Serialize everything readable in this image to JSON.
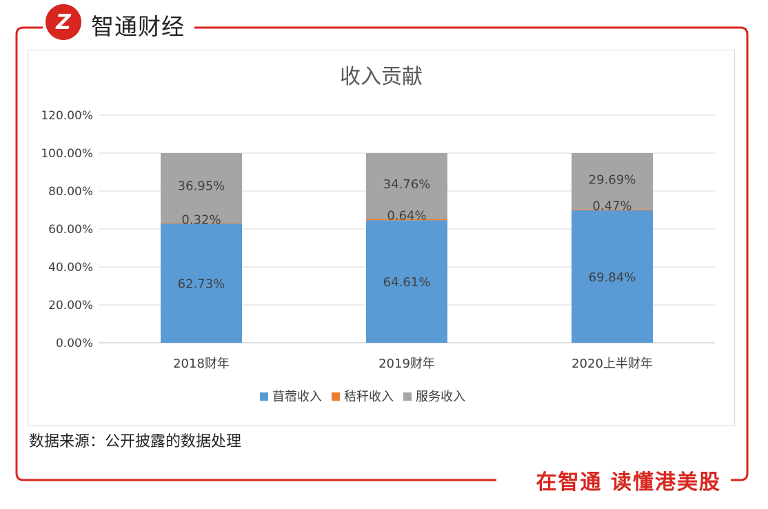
{
  "brand": {
    "logo_text": "Z",
    "name": "智通财经",
    "slogan": "在智通  读懂港美股"
  },
  "source_note": "数据来源：公开披露的数据处理",
  "colors": {
    "frame_red": "#d7261f",
    "alfalfa": "#5b9bd5",
    "straw": "#ed7d31",
    "service": "#a5a5a5",
    "grid": "#d9d9d9",
    "text": "#404040"
  },
  "chart_data": {
    "type": "bar",
    "stacked": true,
    "title": "收入贡献",
    "categories": [
      "2018财年",
      "2019财年",
      "2020上半财年"
    ],
    "y_tick_labels": [
      "0.00%",
      "20.00%",
      "40.00%",
      "60.00%",
      "80.00%",
      "100.00%",
      "120.00%"
    ],
    "ylim": [
      0,
      120
    ],
    "grid": true,
    "legend_position": "bottom",
    "series": [
      {
        "name": "苜蓿收入",
        "color": "#5b9bd5",
        "values": [
          62.73,
          64.61,
          69.84
        ],
        "labels": [
          "62.73%",
          "64.61%",
          "69.84%"
        ]
      },
      {
        "name": "秸秆收入",
        "color": "#ed7d31",
        "values": [
          0.32,
          0.64,
          0.47
        ],
        "labels": [
          "0.32%",
          "0.64%",
          "0.47%"
        ]
      },
      {
        "name": "服务收入",
        "color": "#a5a5a5",
        "values": [
          36.95,
          34.76,
          29.69
        ],
        "labels": [
          "36.95%",
          "34.76%",
          "29.69%"
        ]
      }
    ]
  }
}
